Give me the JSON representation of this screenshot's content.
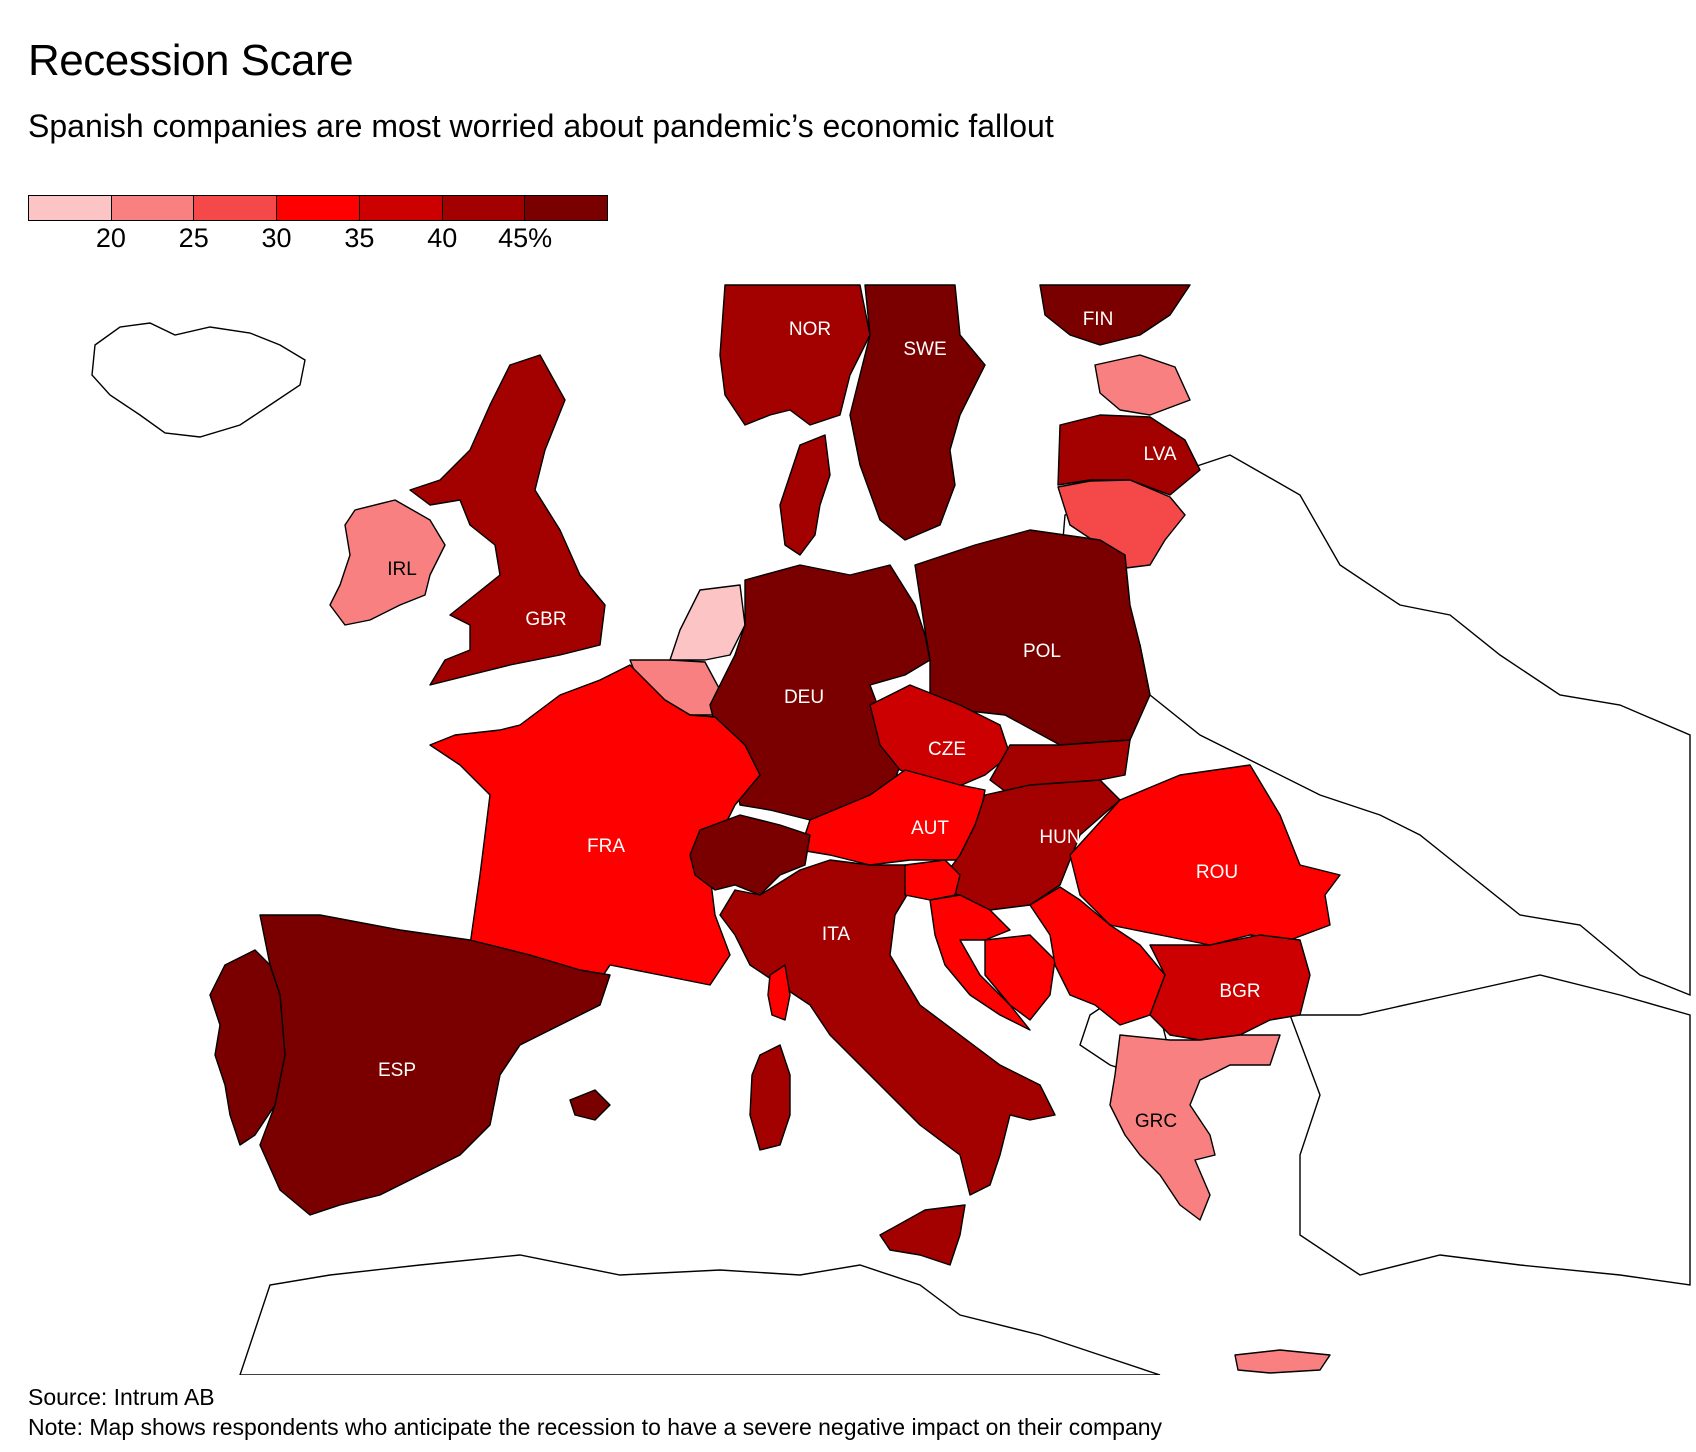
{
  "title": "Recession Scare",
  "subtitle": "Spanish companies are most worried about pandemic’s economic fallout",
  "legend": {
    "colors": [
      "#fcc4c4",
      "#f88080",
      "#f54848",
      "#ff0000",
      "#cc0000",
      "#a30000",
      "#7a0000"
    ],
    "ticks": [
      "20",
      "25",
      "30",
      "35",
      "40",
      "45%"
    ]
  },
  "map": {
    "countries": [
      {
        "code": "NOR",
        "label": "NOR",
        "color": "#a30000",
        "label_color": "#ffffff"
      },
      {
        "code": "SWE",
        "label": "SWE",
        "color": "#7a0000",
        "label_color": "#ffffff"
      },
      {
        "code": "FIN",
        "label": "FIN",
        "color": "#7a0000",
        "label_color": "#ffffff"
      },
      {
        "code": "EST",
        "label": "",
        "color": "#f88080"
      },
      {
        "code": "LVA",
        "label": "LVA",
        "color": "#a30000",
        "label_color": "#ffffff"
      },
      {
        "code": "LTU",
        "label": "",
        "color": "#f54848"
      },
      {
        "code": "IRL",
        "label": "IRL",
        "color": "#f88080",
        "label_color": "#000000"
      },
      {
        "code": "GBR",
        "label": "GBR",
        "color": "#a30000",
        "label_color": "#ffffff"
      },
      {
        "code": "NLD",
        "label": "",
        "color": "#fcc4c4"
      },
      {
        "code": "BEL",
        "label": "",
        "color": "#f88080"
      },
      {
        "code": "DEU",
        "label": "DEU",
        "color": "#7a0000",
        "label_color": "#ffffff"
      },
      {
        "code": "DNK",
        "label": "",
        "color": "#a30000"
      },
      {
        "code": "POL",
        "label": "POL",
        "color": "#7a0000",
        "label_color": "#ffffff"
      },
      {
        "code": "FRA",
        "label": "FRA",
        "color": "#ff0000",
        "label_color": "#ffffff"
      },
      {
        "code": "CZE",
        "label": "CZE",
        "color": "#cc0000",
        "label_color": "#ffffff"
      },
      {
        "code": "SVK",
        "label": "",
        "color": "#a30000"
      },
      {
        "code": "AUT",
        "label": "AUT",
        "color": "#ff0000",
        "label_color": "#ffffff"
      },
      {
        "code": "HUN",
        "label": "HUN",
        "color": "#a30000",
        "label_color": "#ffffff"
      },
      {
        "code": "ROU",
        "label": "ROU",
        "color": "#ff0000",
        "label_color": "#ffffff"
      },
      {
        "code": "CHE",
        "label": "",
        "color": "#7a0000"
      },
      {
        "code": "ITA",
        "label": "ITA",
        "color": "#a30000",
        "label_color": "#ffffff"
      },
      {
        "code": "SVN",
        "label": "",
        "color": "#ff0000"
      },
      {
        "code": "HRV",
        "label": "",
        "color": "#ff0000"
      },
      {
        "code": "BIH",
        "label": "",
        "color": "#ff0000"
      },
      {
        "code": "SRB",
        "label": "",
        "color": "#ff0000"
      },
      {
        "code": "BGR",
        "label": "BGR",
        "color": "#cc0000",
        "label_color": "#ffffff"
      },
      {
        "code": "ESP",
        "label": "ESP",
        "color": "#7a0000",
        "label_color": "#ffffff"
      },
      {
        "code": "PRT",
        "label": "",
        "color": "#7a0000"
      },
      {
        "code": "GRC",
        "label": "GRC",
        "color": "#f88080",
        "label_color": "#000000"
      }
    ]
  },
  "source": "Source: Intrum AB",
  "note": "Note: Map shows respondents who anticipate the recession to have a severe negative impact on their company"
}
